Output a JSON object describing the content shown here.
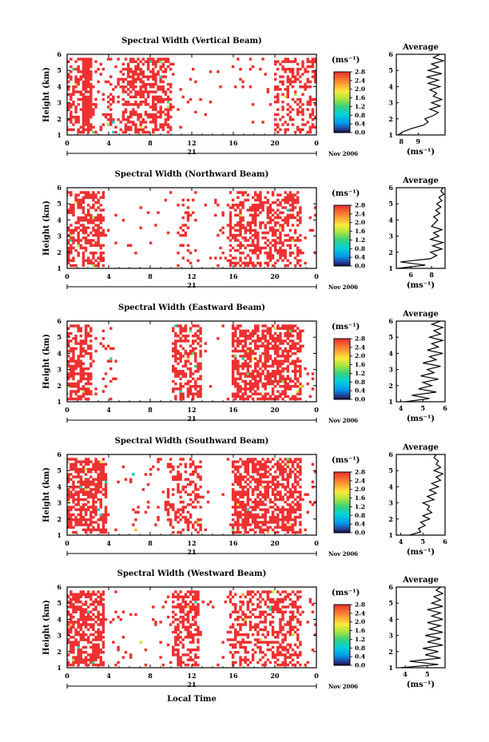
{
  "figure": {
    "xlabel": "Local Time",
    "date_label": "Nov 2006",
    "day_label": "21"
  },
  "chart_data": [
    {
      "type": "heatmap",
      "title": "Spectral Width (Vertical Beam)",
      "ylabel": "Height (km)",
      "xlim": [
        0,
        24
      ],
      "ylim": [
        1,
        6
      ],
      "xticks": [
        "0",
        "4",
        "8",
        "12",
        "16",
        "20",
        "0"
      ],
      "yticks": [
        "1",
        "2",
        "3",
        "4",
        "5",
        "6"
      ],
      "colorbar": {
        "unit": "(ms⁻¹)",
        "ticks": [
          "0.0",
          "0.4",
          "0.8",
          "1.2",
          "1.6",
          "2.0",
          "2.4",
          "2.8"
        ],
        "range": [
          0,
          2.8
        ]
      },
      "value_typical": 2.8,
      "occupancy": [
        [
          0,
          1.5,
          0.45
        ],
        [
          1.5,
          2.4,
          0.92
        ],
        [
          2.4,
          5.2,
          0.18
        ],
        [
          5.2,
          10.0,
          0.55
        ],
        [
          10.0,
          20.0,
          0.03
        ],
        [
          20.0,
          24.0,
          0.35
        ]
      ],
      "average": {
        "title": "Average",
        "xlabel": "(ms⁻¹)",
        "xlim": [
          7.7,
          10.6
        ],
        "xticks": [
          "8",
          "9"
        ],
        "ylim": [
          1,
          6
        ],
        "heights": [
          1.0,
          1.2,
          1.4,
          1.6,
          1.8,
          2.0,
          2.2,
          2.4,
          2.6,
          2.8,
          3.0,
          3.2,
          3.4,
          3.6,
          3.8,
          4.0,
          4.2,
          4.4,
          4.6,
          4.8,
          5.0,
          5.2,
          5.4,
          5.6,
          5.8,
          6.0
        ],
        "values": [
          7.8,
          8.1,
          8.6,
          9.3,
          9.6,
          9.4,
          9.9,
          10.2,
          9.7,
          10.3,
          9.8,
          10.4,
          9.9,
          10.1,
          9.7,
          10.3,
          9.6,
          10.2,
          9.5,
          10.4,
          9.6,
          10.2,
          9.8,
          10.5,
          9.9,
          10.3
        ]
      }
    },
    {
      "type": "heatmap",
      "title": "Spectral Width (Northward Beam)",
      "ylabel": "Height (km)",
      "xlim": [
        0,
        24
      ],
      "ylim": [
        1,
        6
      ],
      "xticks": [
        "0",
        "4",
        "8",
        "12",
        "16",
        "20",
        "0"
      ],
      "yticks": [
        "1",
        "2",
        "3",
        "4",
        "5",
        "6"
      ],
      "colorbar": {
        "unit": "(ms⁻¹)",
        "ticks": [
          "0.0",
          "0.4",
          "0.8",
          "1.2",
          "1.6",
          "2.0",
          "2.4",
          "2.8"
        ],
        "range": [
          0,
          2.8
        ]
      },
      "value_typical": 2.8,
      "occupancy": [
        [
          0,
          3.5,
          0.5
        ],
        [
          3.5,
          10.5,
          0.02
        ],
        [
          10.5,
          12.0,
          0.12
        ],
        [
          12.0,
          15.5,
          0.05
        ],
        [
          15.5,
          22.5,
          0.45
        ],
        [
          22.5,
          24.0,
          0.05
        ]
      ],
      "average": {
        "title": "Average",
        "xlabel": "(ms⁻¹)",
        "xlim": [
          4.6,
          9.3
        ],
        "xticks": [
          "6",
          "8"
        ],
        "ylim": [
          1,
          6
        ],
        "heights": [
          1.0,
          1.2,
          1.4,
          1.6,
          1.8,
          2.0,
          2.2,
          2.4,
          2.6,
          2.8,
          3.0,
          3.2,
          3.4,
          3.6,
          3.8,
          4.0,
          4.2,
          4.4,
          4.6,
          4.8,
          5.0,
          5.2,
          5.4,
          5.6,
          5.8,
          6.0
        ],
        "values": [
          4.7,
          7.4,
          5.0,
          7.9,
          8.5,
          7.9,
          9.0,
          8.1,
          9.1,
          7.9,
          8.7,
          8.2,
          9.0,
          8.0,
          8.3,
          8.6,
          8.2,
          8.8,
          8.4,
          8.9,
          8.5,
          9.0,
          8.7,
          9.2,
          8.9,
          9.1
        ]
      }
    },
    {
      "type": "heatmap",
      "title": "Spectral Width (Eastward Beam)",
      "ylabel": "Height (km)",
      "xlim": [
        0,
        24
      ],
      "ylim": [
        1,
        6
      ],
      "xticks": [
        "0",
        "4",
        "8",
        "12",
        "16",
        "20",
        "0"
      ],
      "yticks": [
        "1",
        "2",
        "3",
        "4",
        "5",
        "6"
      ],
      "colorbar": {
        "unit": "(ms⁻¹)",
        "ticks": [
          "0.0",
          "0.4",
          "0.8",
          "1.2",
          "1.6",
          "2.0",
          "2.4",
          "2.8"
        ],
        "range": [
          0,
          2.8
        ]
      },
      "value_typical": 2.8,
      "occupancy": [
        [
          0,
          2.5,
          0.6
        ],
        [
          2.5,
          4.8,
          0.08
        ],
        [
          4.8,
          10.2,
          0.0
        ],
        [
          10.2,
          13.0,
          0.55
        ],
        [
          13.0,
          15.8,
          0.02
        ],
        [
          15.8,
          22.5,
          0.6
        ],
        [
          22.5,
          24.0,
          0.05
        ]
      ],
      "average": {
        "title": "Average",
        "xlabel": "(ms⁻¹)",
        "xlim": [
          3.8,
          6.0
        ],
        "xticks": [
          "4",
          "5",
          "6"
        ],
        "ylim": [
          1,
          6
        ],
        "heights": [
          1.0,
          1.2,
          1.4,
          1.6,
          1.8,
          2.0,
          2.2,
          2.4,
          2.6,
          2.8,
          3.0,
          3.2,
          3.4,
          3.6,
          3.8,
          4.0,
          4.2,
          4.4,
          4.6,
          4.8,
          5.0,
          5.2,
          5.4,
          5.6,
          5.8,
          6.0
        ],
        "values": [
          4.2,
          5.3,
          4.5,
          5.6,
          4.8,
          5.4,
          5.0,
          5.7,
          4.9,
          5.5,
          5.2,
          5.8,
          5.0,
          5.6,
          5.3,
          5.9,
          5.2,
          5.7,
          5.4,
          5.9,
          5.3,
          5.8,
          5.5,
          5.9,
          5.4,
          5.8
        ]
      }
    },
    {
      "type": "heatmap",
      "title": "Spectral Width (Southward Beam)",
      "ylabel": "Height (km)",
      "xlim": [
        0,
        24
      ],
      "ylim": [
        1,
        6
      ],
      "xticks": [
        "0",
        "4",
        "8",
        "12",
        "16",
        "20",
        "0"
      ],
      "yticks": [
        "1",
        "2",
        "3",
        "4",
        "5",
        "6"
      ],
      "colorbar": {
        "unit": "(ms⁻¹)",
        "ticks": [
          "0.0",
          "0.4",
          "0.8",
          "1.2",
          "1.6",
          "2.0",
          "2.4",
          "2.8"
        ],
        "range": [
          0,
          2.8
        ]
      },
      "value_typical": 2.8,
      "occupancy": [
        [
          0,
          3.8,
          0.62
        ],
        [
          3.8,
          9.5,
          0.04
        ],
        [
          9.5,
          13.0,
          0.35
        ],
        [
          13.0,
          15.8,
          0.02
        ],
        [
          15.8,
          22.5,
          0.62
        ],
        [
          22.5,
          24.0,
          0.08
        ]
      ],
      "average": {
        "title": "Average",
        "xlabel": "(ms⁻¹)",
        "xlim": [
          3.8,
          6.0
        ],
        "xticks": [
          "4",
          "5",
          "6"
        ],
        "ylim": [
          1,
          6
        ],
        "heights": [
          1.0,
          1.2,
          1.4,
          1.6,
          1.8,
          2.0,
          2.2,
          2.4,
          2.6,
          2.8,
          3.0,
          3.2,
          3.4,
          3.6,
          3.8,
          4.0,
          4.2,
          4.4,
          4.6,
          4.8,
          5.0,
          5.2,
          5.4,
          5.6,
          5.8,
          6.0
        ],
        "values": [
          4.4,
          4.9,
          4.8,
          5.1,
          4.9,
          5.3,
          5.0,
          5.4,
          5.2,
          5.3,
          5.0,
          5.5,
          5.2,
          5.6,
          5.3,
          5.7,
          5.4,
          5.8,
          5.6,
          5.9,
          5.5,
          5.8,
          5.6,
          5.7,
          5.5,
          5.6
        ]
      }
    },
    {
      "type": "heatmap",
      "title": "Spectral Width (Westward Beam)",
      "ylabel": "Height (km)",
      "xlim": [
        0,
        24
      ],
      "ylim": [
        1,
        6
      ],
      "xticks": [
        "0",
        "4",
        "8",
        "12",
        "16",
        "20",
        "0"
      ],
      "yticks": [
        "1",
        "2",
        "3",
        "4",
        "5",
        "6"
      ],
      "colorbar": {
        "unit": "(ms⁻¹)",
        "ticks": [
          "0.0",
          "0.4",
          "0.8",
          "1.2",
          "1.6",
          "2.0",
          "2.4",
          "2.8"
        ],
        "range": [
          0,
          2.8
        ]
      },
      "value_typical": 2.8,
      "occupancy": [
        [
          0,
          3.5,
          0.62
        ],
        [
          3.5,
          10.0,
          0.04
        ],
        [
          10.0,
          12.8,
          0.5
        ],
        [
          12.8,
          15.5,
          0.03
        ],
        [
          15.5,
          22.5,
          0.45
        ],
        [
          22.5,
          24.0,
          0.05
        ]
      ],
      "average": {
        "title": "Average",
        "xlabel": "(ms⁻¹)",
        "xlim": [
          3.6,
          5.8
        ],
        "xticks": [
          "4",
          "5"
        ],
        "ylim": [
          1,
          6
        ],
        "heights": [
          1.0,
          1.2,
          1.4,
          1.6,
          1.8,
          2.0,
          2.2,
          2.4,
          2.6,
          2.8,
          3.0,
          3.2,
          3.4,
          3.6,
          3.8,
          4.0,
          4.2,
          4.4,
          4.6,
          4.8,
          5.0,
          5.2,
          5.4,
          5.6,
          5.8,
          6.0
        ],
        "values": [
          3.8,
          5.5,
          4.2,
          5.6,
          4.9,
          5.5,
          4.8,
          5.7,
          5.0,
          5.6,
          4.9,
          5.7,
          5.1,
          5.6,
          5.0,
          5.7,
          5.2,
          5.6,
          5.0,
          5.7,
          5.2,
          5.6,
          5.3,
          5.7,
          5.4,
          5.6
        ]
      }
    }
  ]
}
